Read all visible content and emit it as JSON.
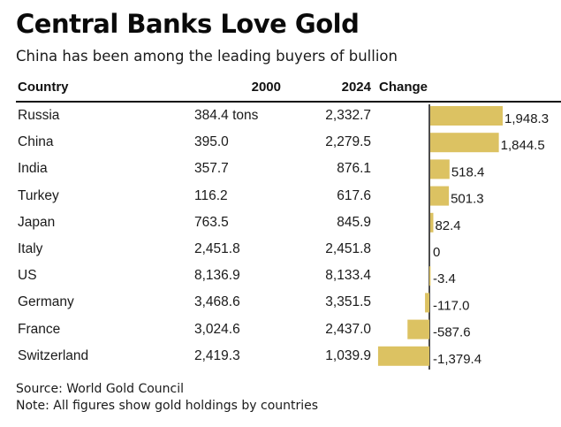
{
  "title": "Central Banks Love Gold",
  "subtitle": "China has been among the leading buyers of bullion",
  "table": {
    "headers": {
      "country": "Country",
      "y2000": "2000",
      "y2024": "2024",
      "change": "Change"
    },
    "rows": [
      {
        "country": "Russia",
        "y2000": "384.4 tons",
        "y2024": "2,332.7",
        "change_label": "1,948.3"
      },
      {
        "country": "China",
        "y2000": "395.0",
        "y2024": "2,279.5",
        "change_label": "1,844.5"
      },
      {
        "country": "India",
        "y2000": "357.7",
        "y2024": "876.1",
        "change_label": "518.4"
      },
      {
        "country": "Turkey",
        "y2000": "116.2",
        "y2024": "617.6",
        "change_label": "501.3"
      },
      {
        "country": "Japan",
        "y2000": "763.5",
        "y2024": "845.9",
        "change_label": "82.4"
      },
      {
        "country": "Italy",
        "y2000": "2,451.8",
        "y2024": "2,451.8",
        "change_label": "0"
      },
      {
        "country": "US",
        "y2000": "8,136.9",
        "y2024": "8,133.4",
        "change_label": "-3.4"
      },
      {
        "country": "Germany",
        "y2000": "3,468.6",
        "y2024": "3,351.5",
        "change_label": "-117.0"
      },
      {
        "country": "France",
        "y2000": "3,024.6",
        "y2024": "2,437.0",
        "change_label": "-587.6"
      },
      {
        "country": "Switzerland",
        "y2000": "2,419.3",
        "y2024": "1,039.9",
        "change_label": "-1,379.4"
      }
    ]
  },
  "chart_data": {
    "type": "bar",
    "orientation": "horizontal",
    "title": "Central Banks Love Gold",
    "subtitle": "China has been among the leading buyers of bullion",
    "xlabel": "Change",
    "ylabel": "Country",
    "categories": [
      "Russia",
      "China",
      "India",
      "Turkey",
      "Japan",
      "Italy",
      "US",
      "Germany",
      "France",
      "Switzerland"
    ],
    "values": [
      1948.3,
      1844.5,
      518.4,
      501.3,
      82.4,
      0,
      -3.4,
      -117.0,
      -587.6,
      -1379.4
    ],
    "xlim": [
      -1400,
      2000
    ],
    "grid": false,
    "legend": "none",
    "bar_color": "#dcc262",
    "axis_color": "#111111"
  },
  "footer": {
    "source": "Source: World Gold Council",
    "note": "Note: All figures show gold holdings by countries"
  }
}
